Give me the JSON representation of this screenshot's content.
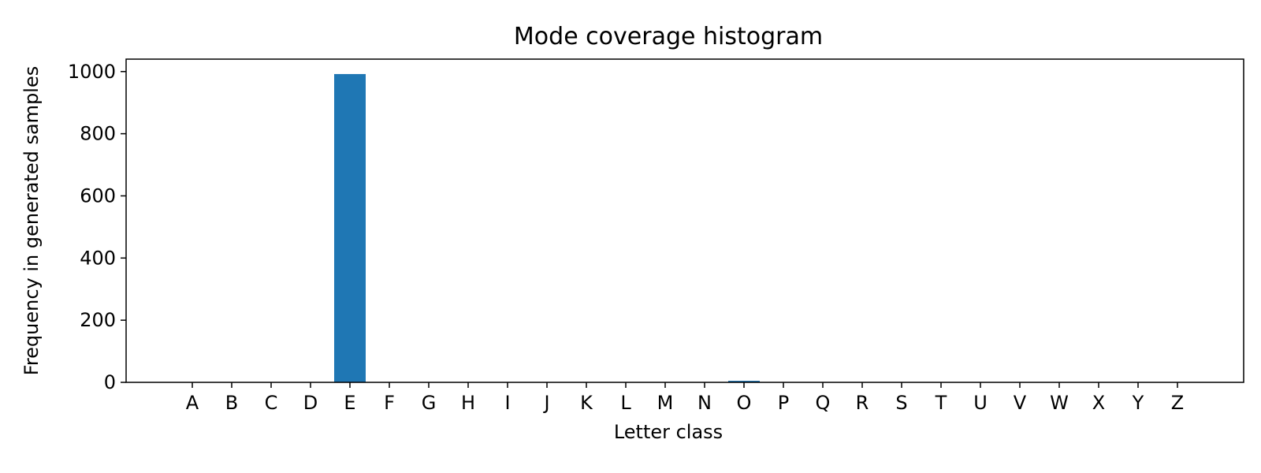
{
  "chart_data": {
    "type": "bar",
    "title": "Mode coverage histogram",
    "xlabel": "Letter class",
    "ylabel": "Frequency in generated samples",
    "categories": [
      "A",
      "B",
      "C",
      "D",
      "E",
      "F",
      "G",
      "H",
      "I",
      "J",
      "K",
      "L",
      "M",
      "N",
      "O",
      "P",
      "Q",
      "R",
      "S",
      "T",
      "U",
      "V",
      "W",
      "X",
      "Y",
      "Z"
    ],
    "values": [
      0,
      0,
      0,
      0,
      992,
      0,
      0,
      0,
      0,
      0,
      0,
      0,
      0,
      0,
      5,
      0,
      0,
      0,
      0,
      0,
      0,
      0,
      0,
      0,
      0,
      0
    ],
    "ylim": [
      0,
      1040
    ],
    "yticks": [
      0,
      200,
      400,
      600,
      800,
      1000
    ],
    "grid": false,
    "bar_color": "#1f77b4"
  }
}
